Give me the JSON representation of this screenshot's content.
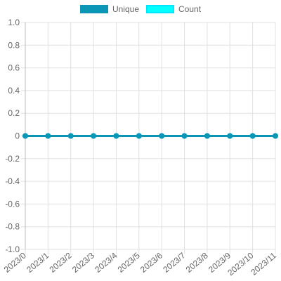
{
  "chart_data": {
    "type": "line",
    "categories": [
      "2023/0",
      "2023/1",
      "2023/2",
      "2023/3",
      "2023/4",
      "2023/5",
      "2023/6",
      "2023/7",
      "2023/8",
      "2023/9",
      "2023/10",
      "2023/11"
    ],
    "series": [
      {
        "name": "Unique",
        "values": [
          0,
          0,
          0,
          0,
          0,
          0,
          0,
          0,
          0,
          0,
          0,
          0
        ],
        "color": "#0b96b5"
      },
      {
        "name": "Count",
        "values": [
          0,
          0,
          0,
          0,
          0,
          0,
          0,
          0,
          0,
          0,
          0,
          0
        ],
        "color": "#00ffff"
      }
    ],
    "yticks": [
      "1.0",
      "0.8",
      "0.6",
      "0.4",
      "0.2",
      "0",
      "-0.2",
      "-0.4",
      "-0.6",
      "-0.8",
      "-1.0"
    ],
    "ylim": [
      -1.0,
      1.0
    ],
    "grid": true,
    "legend": "top-center"
  }
}
